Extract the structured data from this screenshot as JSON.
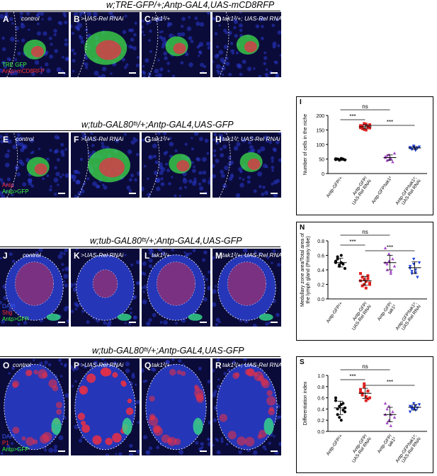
{
  "rows": [
    {
      "title": "w;TRE-GFP/+;Antp-GAL4,UAS-mCD8RFP",
      "panels": [
        {
          "letter": "A",
          "genotype": "control"
        },
        {
          "letter": "B",
          "genotype": ">UAS-Rel RNAi"
        },
        {
          "letter": "C",
          "genotype": "tak1²/+"
        },
        {
          "letter": "D",
          "genotype": "tak1²/+; UAS-Rel RNAi"
        }
      ],
      "legend": [
        {
          "text": "TRE GFP",
          "color": "#3cff3c"
        },
        {
          "text": "Antp>mCD8RFP",
          "color": "#ff3030"
        }
      ]
    },
    {
      "title": "w;tub-GAL80ᵗˢ/+;Antp-GAL4,UAS-GFP",
      "panels": [
        {
          "letter": "E",
          "genotype": "control"
        },
        {
          "letter": "F",
          "genotype": ">UAS-Rel RNAi"
        },
        {
          "letter": "G",
          "genotype": "tak1²/+"
        },
        {
          "letter": "H",
          "genotype": "tak1²/; UAS-Rel RNAi"
        }
      ],
      "legend": [
        {
          "text": "Antp",
          "color": "#ff3030"
        },
        {
          "text": "Antp>GFP",
          "color": "#3cff3c"
        }
      ]
    },
    {
      "title": "w;tub-GAL80ᵗˢ/+;Antp-GAL4,UAS-GFP",
      "panels": [
        {
          "letter": "J",
          "genotype": "control"
        },
        {
          "letter": "K",
          "genotype": ">UAS-Rel RNAi"
        },
        {
          "letter": "L",
          "genotype": "tak1²/+"
        },
        {
          "letter": "M",
          "genotype": "tak1²/+; UAS-Rel RNAi"
        }
      ],
      "legend": [
        {
          "text": "DAPI",
          "color": "#3c5aff"
        },
        {
          "text": "Shg",
          "color": "#ff3030"
        },
        {
          "text": "Antp>GFP",
          "color": "#3cff3c"
        }
      ]
    },
    {
      "title": "w;tub-GAL80ᵗˢ/+;Antp-GAL4,UAS-GFP",
      "panels": [
        {
          "letter": "O",
          "genotype": "control"
        },
        {
          "letter": "P",
          "genotype": ">UAS-Rel RNAi"
        },
        {
          "letter": "Q",
          "genotype": "tak1²/+"
        },
        {
          "letter": "R",
          "genotype": "tak1²/+; UAS-Rel RNAi"
        }
      ],
      "legend": [
        {
          "text": "DAPI",
          "color": "#3c5aff"
        },
        {
          "text": "P1",
          "color": "#ff3030"
        },
        {
          "text": "Antp>GFP",
          "color": "#3cff3c"
        }
      ]
    }
  ],
  "chart_data": [
    {
      "panel": "I",
      "type": "scatter",
      "ylabel": "Number of cells in the niche",
      "ylim": [
        0,
        200
      ],
      "yticks": [
        0,
        50,
        100,
        150,
        200
      ],
      "categories": [
        "Antp-GFP/+",
        "Antp-GFP/ UAS-Rel RNAi",
        "Antp-GFP/tak1²",
        "Antp-GFP/tak1²; UAS-Rel RNAi"
      ],
      "colors": [
        "#000000",
        "#e0201e",
        "#a64ac9",
        "#1f3fd8"
      ],
      "markers": [
        "circle",
        "square",
        "triangle",
        "triangle-down"
      ],
      "series": [
        {
          "values": [
            48,
            50,
            46,
            52,
            49,
            47,
            51,
            50,
            48,
            49,
            50,
            47
          ]
        },
        {
          "values": [
            165,
            155,
            172,
            150,
            160,
            168,
            158,
            163,
            152,
            170,
            161,
            157
          ]
        },
        {
          "values": [
            58,
            45,
            65,
            50,
            40,
            70,
            55,
            62,
            48,
            52
          ]
        },
        {
          "values": [
            90,
            85,
            95,
            80,
            88,
            92,
            87,
            83,
            91,
            86
          ]
        }
      ],
      "means": [
        49,
        161,
        55,
        88
      ],
      "sd": [
        2,
        7,
        9,
        5
      ],
      "significance": [
        {
          "from": 0,
          "to": 1,
          "label": "***"
        },
        {
          "from": 0,
          "to": 2,
          "label": "ns"
        },
        {
          "from": 1,
          "to": 3,
          "label": "***"
        }
      ]
    },
    {
      "panel": "N",
      "type": "scatter",
      "ylabel": "Medullary zone area/Total area of the lymph gland (Primary lobe)",
      "ylim": [
        0,
        0.8
      ],
      "yticks": [
        0.0,
        0.2,
        0.4,
        0.6,
        0.8
      ],
      "categories": [
        "Antp-GFP/+",
        "Antp-GFP/ UAS-Rel RNAi",
        "Antp-GFP/ tak1²",
        "Antp-GFP/tak1²; UAS-Rel RNAi"
      ],
      "colors": [
        "#000000",
        "#e0201e",
        "#a64ac9",
        "#1f3fd8"
      ],
      "markers": [
        "circle",
        "square",
        "triangle",
        "triangle-down"
      ],
      "series": [
        {
          "values": [
            0.5,
            0.55,
            0.45,
            0.6,
            0.48,
            0.42,
            0.52,
            0.58,
            0.47,
            0.5
          ]
        },
        {
          "values": [
            0.25,
            0.3,
            0.2,
            0.15,
            0.28,
            0.22,
            0.35,
            0.18,
            0.27,
            0.24,
            0.32,
            0.2
          ]
        },
        {
          "values": [
            0.5,
            0.4,
            0.62,
            0.35,
            0.55,
            0.45,
            0.7,
            0.48,
            0.52,
            0.38
          ]
        },
        {
          "values": [
            0.45,
            0.35,
            0.55,
            0.4,
            0.3,
            0.5,
            0.42,
            0.38,
            0.48,
            0.36
          ]
        }
      ],
      "means": [
        0.5,
        0.25,
        0.5,
        0.43
      ],
      "sd": [
        0.06,
        0.06,
        0.1,
        0.08
      ],
      "significance": [
        {
          "from": 0,
          "to": 1,
          "label": "***"
        },
        {
          "from": 0,
          "to": 2,
          "label": "ns"
        },
        {
          "from": 1,
          "to": 3,
          "label": "***"
        }
      ]
    },
    {
      "panel": "S",
      "type": "scatter",
      "ylabel": "Differentiation index",
      "ylim": [
        0,
        1.0
      ],
      "yticks": [
        0.0,
        0.2,
        0.4,
        0.6,
        0.8,
        1.0
      ],
      "categories": [
        "Antp-GFP/+",
        "Antp-GFP/ UAS-Rel RNAi",
        "Antp-GFP/ tak1²",
        "Antp-GFP/tak1²; UAS-Rel RNAi"
      ],
      "colors": [
        "#000000",
        "#e0201e",
        "#a64ac9",
        "#1f3fd8"
      ],
      "markers": [
        "circle",
        "square",
        "triangle",
        "triangle-down"
      ],
      "series": [
        {
          "values": [
            0.55,
            0.3,
            0.45,
            0.2,
            0.5,
            0.35,
            0.6,
            0.4,
            0.25,
            0.48,
            0.38,
            0.42
          ]
        },
        {
          "values": [
            0.7,
            0.65,
            0.8,
            0.55,
            0.72,
            0.6,
            0.75,
            0.68,
            0.85,
            0.62,
            0.58
          ]
        },
        {
          "values": [
            0.3,
            0.4,
            0.2,
            0.1,
            0.35,
            0.25,
            0.5,
            0.15,
            0.45,
            0.3
          ]
        },
        {
          "values": [
            0.45,
            0.4,
            0.5,
            0.38,
            0.42,
            0.48,
            0.35,
            0.44,
            0.4,
            0.46
          ]
        }
      ],
      "means": [
        0.42,
        0.68,
        0.3,
        0.43
      ],
      "sd": [
        0.12,
        0.09,
        0.13,
        0.05
      ],
      "significance": [
        {
          "from": 0,
          "to": 1,
          "label": "***"
        },
        {
          "from": 0,
          "to": 2,
          "label": "ns"
        },
        {
          "from": 1,
          "to": 3,
          "label": "***"
        }
      ]
    }
  ]
}
